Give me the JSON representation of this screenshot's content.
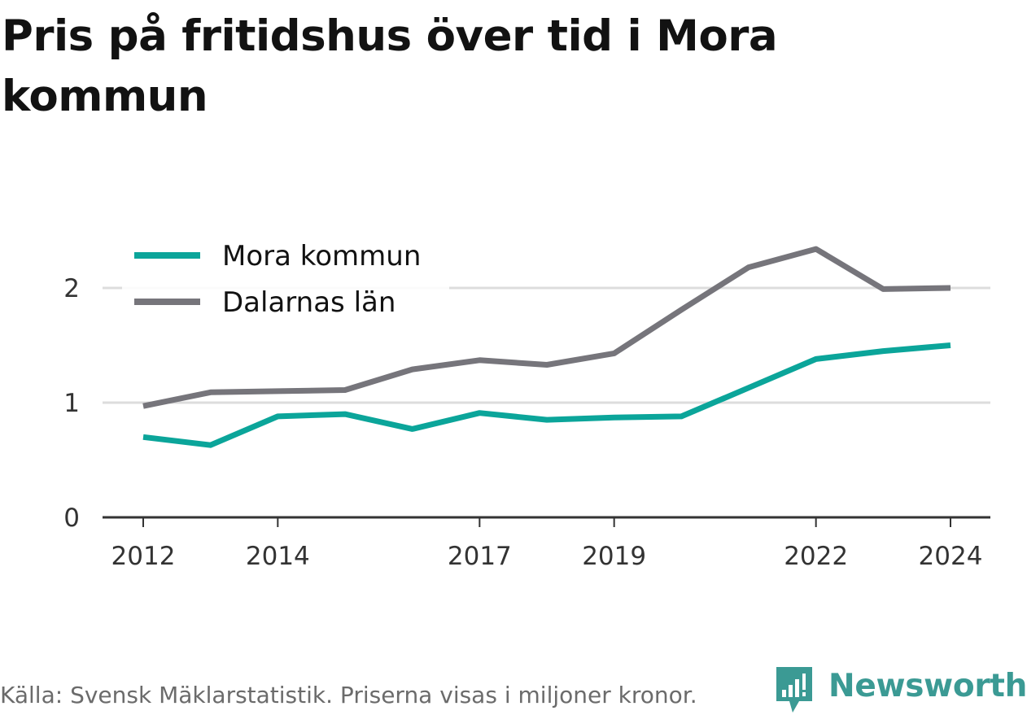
{
  "title": "Pris på fritidshus över tid i Mora kommun",
  "footer": {
    "note": "Källa: Svensk Mäklarstatistik. Priserna visas i miljoner kronor.",
    "brand": "Newsworthy"
  },
  "colors": {
    "mora": "#0ba59a",
    "dalarna": "#76757b",
    "grid": "#dddddd",
    "axis": "#333333",
    "brand": "#3b9a94"
  },
  "chart_data": {
    "type": "line",
    "x": [
      2012,
      2013,
      2014,
      2015,
      2016,
      2017,
      2018,
      2019,
      2020,
      2021,
      2022,
      2023,
      2024
    ],
    "x_tick_labels": [
      "2012",
      "2014",
      "2017",
      "2019",
      "2022",
      "2024"
    ],
    "y_tick_labels": [
      "0",
      "1",
      "2"
    ],
    "ylim": [
      0,
      2.4
    ],
    "grid": true,
    "legend_position": "top-left",
    "series": [
      {
        "name": "Mora kommun",
        "color": "#0ba59a",
        "values": [
          0.7,
          0.63,
          0.88,
          0.9,
          0.77,
          0.91,
          0.85,
          0.87,
          0.88,
          1.13,
          1.38,
          1.45,
          1.5
        ]
      },
      {
        "name": "Dalarnas län",
        "color": "#76757b",
        "values": [
          0.97,
          1.09,
          1.1,
          1.11,
          1.29,
          1.37,
          1.33,
          1.43,
          1.81,
          2.18,
          2.34,
          1.99,
          2.0
        ]
      }
    ]
  }
}
